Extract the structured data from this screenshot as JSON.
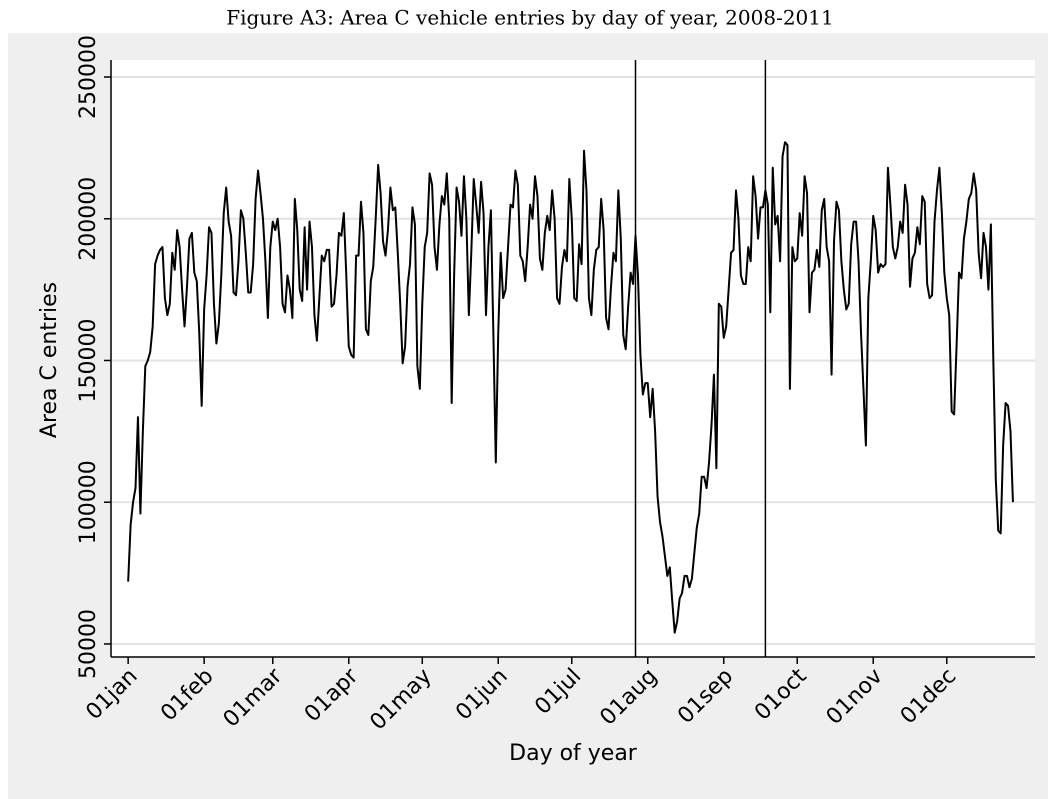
{
  "chart_data": {
    "type": "line",
    "title": "Figure A3: Area C vehicle entries by day of year, 2008-2011",
    "x_label": "Day of year",
    "y_label": "Area C entries",
    "xlim": [
      -6,
      371
    ],
    "ylim": [
      45400,
      256000
    ],
    "xticks": [
      {
        "value": 1,
        "label": "01jan"
      },
      {
        "value": 32,
        "label": "01feb"
      },
      {
        "value": 60,
        "label": "01mar"
      },
      {
        "value": 91,
        "label": "01apr"
      },
      {
        "value": 121,
        "label": "01may"
      },
      {
        "value": 152,
        "label": "01jun"
      },
      {
        "value": 182,
        "label": "01jul"
      },
      {
        "value": 213,
        "label": "01aug"
      },
      {
        "value": 244,
        "label": "01sep"
      },
      {
        "value": 274,
        "label": "01oct"
      },
      {
        "value": 305,
        "label": "01nov"
      },
      {
        "value": 335,
        "label": "01dec"
      }
    ],
    "yticks": [
      50000,
      100000,
      150000,
      200000,
      250000
    ],
    "grid": true,
    "vlines": [
      208,
      261
    ],
    "color": "#000000",
    "x": [
      1,
      2,
      3,
      4,
      5,
      6,
      7,
      8,
      9,
      10,
      11,
      12,
      13,
      14,
      15,
      16,
      17,
      18,
      19,
      20,
      21,
      22,
      23,
      24,
      25,
      26,
      27,
      28,
      29,
      30,
      31,
      32,
      33,
      34,
      35,
      36,
      37,
      38,
      39,
      40,
      41,
      42,
      43,
      44,
      45,
      46,
      47,
      48,
      49,
      50,
      51,
      52,
      53,
      54,
      55,
      56,
      57,
      58,
      59,
      60,
      61,
      62,
      63,
      64,
      65,
      66,
      67,
      68,
      69,
      70,
      71,
      72,
      73,
      74,
      75,
      76,
      77,
      78,
      79,
      80,
      81,
      82,
      83,
      84,
      85,
      86,
      87,
      88,
      89,
      90,
      91,
      92,
      93,
      94,
      95,
      96,
      97,
      98,
      99,
      100,
      101,
      102,
      103,
      104,
      105,
      106,
      107,
      108,
      109,
      110,
      111,
      112,
      113,
      114,
      115,
      116,
      117,
      118,
      119,
      120,
      121,
      122,
      123,
      124,
      125,
      126,
      127,
      128,
      129,
      130,
      131,
      132,
      133,
      134,
      135,
      136,
      137,
      138,
      139,
      140,
      141,
      142,
      143,
      144,
      145,
      146,
      147,
      148,
      149,
      150,
      151,
      152,
      153,
      154,
      155,
      156,
      157,
      158,
      159,
      160,
      161,
      162,
      163,
      164,
      165,
      166,
      167,
      168,
      169,
      170,
      171,
      172,
      173,
      174,
      175,
      176,
      177,
      178,
      179,
      180,
      181,
      182,
      183,
      184,
      185,
      186,
      187,
      188,
      189,
      190,
      191,
      192,
      193,
      194,
      195,
      196,
      197,
      198,
      199,
      200,
      201,
      202,
      203,
      204,
      205,
      206,
      207,
      208,
      209,
      210,
      211,
      212,
      213,
      214,
      215,
      216,
      217,
      218,
      219,
      220,
      221,
      222,
      223,
      224,
      225,
      226,
      227,
      228,
      229,
      230,
      231,
      232,
      233,
      234,
      235,
      236,
      237,
      238,
      239,
      240,
      241,
      242,
      243,
      244,
      245,
      246,
      247,
      248,
      249,
      250,
      251,
      252,
      253,
      254,
      255,
      256,
      257,
      258,
      259,
      260,
      261,
      262,
      263,
      264,
      265,
      266,
      267,
      268,
      269,
      270,
      271,
      272,
      273,
      274,
      275,
      276,
      277,
      278,
      279,
      280,
      281,
      282,
      283,
      284,
      285,
      286,
      287,
      288,
      289,
      290,
      291,
      292,
      293,
      294,
      295,
      296,
      297,
      298,
      299,
      300,
      301,
      302,
      303,
      304,
      305,
      306,
      307,
      308,
      309,
      310,
      311,
      312,
      313,
      314,
      315,
      316,
      317,
      318,
      319,
      320,
      321,
      322,
      323,
      324,
      325,
      326,
      327,
      328,
      329,
      330,
      331,
      332,
      333,
      334,
      335,
      336,
      337,
      338,
      339,
      340,
      341,
      342,
      343,
      344,
      345,
      346,
      347,
      348,
      349,
      350,
      351,
      352,
      353,
      354,
      355,
      356,
      357,
      358,
      359,
      360,
      361,
      362
    ],
    "values": [
      72000,
      92000,
      100000,
      105000,
      130000,
      96000,
      125000,
      148000,
      150000,
      153000,
      162000,
      184000,
      187000,
      189000,
      190000,
      172000,
      166000,
      170000,
      188000,
      182000,
      196000,
      190000,
      175000,
      162000,
      176000,
      193000,
      195000,
      181000,
      178000,
      160000,
      134000,
      168000,
      180000,
      197000,
      195000,
      170000,
      156000,
      163000,
      180000,
      202000,
      211000,
      199000,
      194000,
      174000,
      173000,
      185000,
      203000,
      200000,
      188000,
      174000,
      174000,
      184000,
      207000,
      217000,
      209000,
      200000,
      185000,
      165000,
      190000,
      199000,
      196000,
      200000,
      190000,
      170000,
      167000,
      180000,
      175000,
      165000,
      207000,
      196000,
      175000,
      171000,
      197000,
      175000,
      199000,
      190000,
      166000,
      157000,
      172000,
      187000,
      185000,
      189000,
      189000,
      169000,
      170000,
      180000,
      195000,
      194000,
      202000,
      180000,
      155000,
      152000,
      151000,
      187000,
      187000,
      206000,
      195000,
      161000,
      159000,
      178000,
      183000,
      200000,
      219000,
      209000,
      192000,
      187000,
      196000,
      211000,
      203000,
      204000,
      188000,
      170000,
      149000,
      155000,
      176000,
      184000,
      204000,
      198000,
      148000,
      140000,
      170000,
      190000,
      195000,
      216000,
      212000,
      190000,
      182000,
      198000,
      208000,
      205000,
      216000,
      200000,
      135000,
      180000,
      211000,
      206000,
      194000,
      215000,
      200000,
      166000,
      188000,
      214000,
      205000,
      195000,
      213000,
      202000,
      166000,
      190000,
      203000,
      160000,
      114000,
      160000,
      188000,
      172000,
      175000,
      190000,
      205000,
      204000,
      217000,
      212000,
      187000,
      185000,
      178000,
      190000,
      205000,
      200000,
      215000,
      208000,
      186000,
      182000,
      195000,
      201000,
      196000,
      210000,
      200000,
      172000,
      170000,
      183000,
      189000,
      185000,
      214000,
      200000,
      172000,
      171000,
      191000,
      184000,
      224000,
      210000,
      172000,
      166000,
      182000,
      189000,
      190000,
      207000,
      196000,
      165000,
      161000,
      176000,
      188000,
      185000,
      210000,
      193000,
      159000,
      154000,
      169000,
      181000,
      177000,
      194000,
      180000,
      152000,
      138000,
      142000,
      142000,
      130000,
      140000,
      125000,
      102000,
      93000,
      88000,
      81000,
      74000,
      77000,
      65000,
      54000,
      58000,
      66000,
      68000,
      74000,
      74000,
      70000,
      73000,
      82000,
      91000,
      96000,
      109000,
      109000,
      105000,
      114000,
      127000,
      145000,
      112000,
      170000,
      169000,
      158000,
      162000,
      175000,
      188000,
      189000,
      210000,
      200000,
      180000,
      177000,
      177000,
      190000,
      185000,
      215000,
      208000,
      193000,
      204000,
      204000,
      210000,
      205000,
      167000,
      218000,
      198000,
      201000,
      185000,
      222000,
      227000,
      226000,
      140000,
      190000,
      185000,
      186000,
      202000,
      194000,
      215000,
      209000,
      167000,
      181000,
      182000,
      189000,
      183000,
      203000,
      207000,
      190000,
      185000,
      145000,
      192000,
      206000,
      203000,
      185000,
      175000,
      168000,
      170000,
      191000,
      199000,
      199000,
      185000,
      160000,
      140000,
      120000,
      172000,
      185000,
      201000,
      196000,
      181000,
      184000,
      183000,
      184000,
      218000,
      205000,
      190000,
      186000,
      190000,
      199000,
      195000,
      212000,
      205000,
      176000,
      186000,
      188000,
      197000,
      191000,
      208000,
      206000,
      177000,
      172000,
      173000,
      199000,
      210000,
      218000,
      202000,
      181000,
      172000,
      166000,
      132000,
      131000,
      155000,
      181000,
      179000,
      193000,
      199000,
      207000,
      209000,
      216000,
      210000,
      188000,
      179000,
      195000,
      190000,
      175000,
      198000,
      150000,
      108000,
      90000,
      89000,
      120000,
      135000,
      134000,
      125000,
      100000
    ]
  }
}
